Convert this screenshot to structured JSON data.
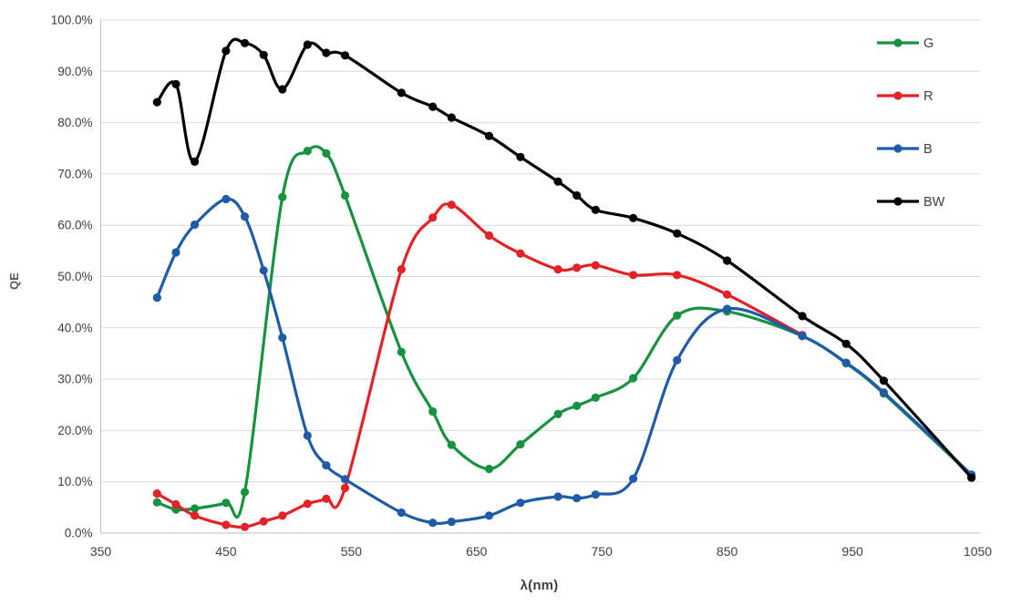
{
  "chart_data": {
    "type": "line",
    "title": "",
    "xlabel": "λ(nm)",
    "ylabel": "QE",
    "xlim": [
      350,
      1050
    ],
    "ylim": [
      0,
      100
    ],
    "grid": "horizontal",
    "gridline_color": "#d9d9d9",
    "axis_line_color": "#bfbfbf",
    "tick_label_color": "#404040",
    "legend_position": "inside-top-right",
    "x_ticks": [
      {
        "value": 350,
        "label": "350"
      },
      {
        "value": 450,
        "label": "450"
      },
      {
        "value": 550,
        "label": "550"
      },
      {
        "value": 650,
        "label": "650"
      },
      {
        "value": 750,
        "label": "750"
      },
      {
        "value": 850,
        "label": "850"
      },
      {
        "value": 950,
        "label": "950"
      },
      {
        "value": 1050,
        "label": "1050"
      }
    ],
    "y_ticks": [
      {
        "value": 0,
        "label": "0.0%"
      },
      {
        "value": 10,
        "label": "10.0%"
      },
      {
        "value": 20,
        "label": "20.0%"
      },
      {
        "value": 30,
        "label": "30.0%"
      },
      {
        "value": 40,
        "label": "40.0%"
      },
      {
        "value": 50,
        "label": "50.0%"
      },
      {
        "value": 60,
        "label": "60.0%"
      },
      {
        "value": 70,
        "label": "70.0%"
      },
      {
        "value": 80,
        "label": "80.0%"
      },
      {
        "value": 90,
        "label": "90.0%"
      },
      {
        "value": 100,
        "label": "100.0%"
      }
    ],
    "series": [
      {
        "name": "G",
        "color": "#169240",
        "x": [
          395,
          410,
          425,
          450,
          465,
          495,
          515,
          530,
          545,
          590,
          615,
          630,
          660,
          685,
          715,
          730,
          745,
          775,
          810,
          850,
          910,
          945,
          975,
          1045
        ],
        "y": [
          6.0,
          4.6,
          4.8,
          5.9,
          8.0,
          65.5,
          74.5,
          74.0,
          65.8,
          35.3,
          23.7,
          17.2,
          12.5,
          17.3,
          23.2,
          24.8,
          26.4,
          30.2,
          42.4,
          43.2,
          38.4,
          33.1,
          27.2,
          11.2
        ]
      },
      {
        "name": "R",
        "color": "#e32227",
        "x": [
          395,
          410,
          425,
          450,
          465,
          480,
          495,
          515,
          530,
          545,
          590,
          615,
          630,
          660,
          685,
          715,
          730,
          745,
          775,
          810,
          850,
          910
        ],
        "y": [
          7.7,
          5.6,
          3.4,
          1.6,
          1.2,
          2.3,
          3.4,
          5.7,
          6.7,
          8.8,
          51.4,
          61.5,
          64.0,
          58.0,
          54.5,
          51.4,
          51.7,
          52.2,
          50.3,
          50.3,
          46.5,
          38.6
        ]
      },
      {
        "name": "B",
        "color": "#1f5ca8",
        "x": [
          395,
          410,
          425,
          450,
          465,
          480,
          495,
          515,
          530,
          545,
          590,
          615,
          630,
          660,
          685,
          715,
          730,
          745,
          775,
          810,
          850,
          910,
          945,
          975,
          1045
        ],
        "y": [
          45.9,
          54.7,
          60.1,
          65.1,
          61.7,
          51.2,
          38.1,
          19.0,
          13.2,
          10.5,
          4.0,
          2.0,
          2.2,
          3.4,
          5.9,
          7.1,
          6.8,
          7.5,
          10.6,
          33.7,
          43.7,
          38.4,
          33.2,
          27.4,
          11.4
        ]
      },
      {
        "name": "BW",
        "color": "#000000",
        "x": [
          395,
          410,
          425,
          450,
          465,
          480,
          495,
          515,
          530,
          545,
          590,
          615,
          630,
          660,
          685,
          715,
          730,
          745,
          775,
          810,
          850,
          910,
          945,
          975,
          1045
        ],
        "y": [
          84.0,
          87.5,
          72.4,
          94.0,
          95.5,
          93.2,
          86.5,
          95.2,
          93.6,
          93.1,
          85.8,
          83.1,
          81.0,
          77.4,
          73.3,
          68.5,
          65.8,
          63.0,
          61.4,
          58.4,
          53.1,
          42.3,
          36.9,
          29.7,
          10.8
        ]
      }
    ]
  }
}
